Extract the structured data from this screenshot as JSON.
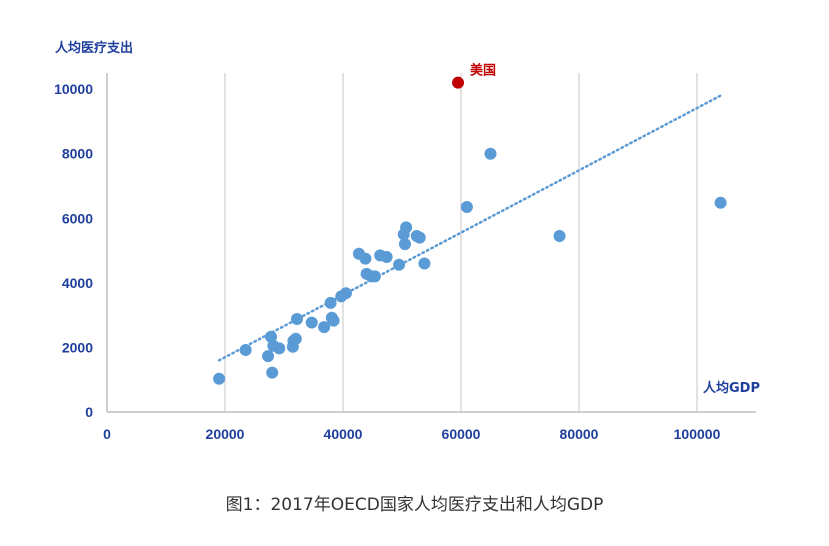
{
  "caption": "图1：2017年OECD国家人均医疗支出和人均GDP",
  "colors": {
    "point": "#5b9bd5",
    "highlight": "#c00000",
    "axis_text": "#1f3f9c",
    "grid": "#d9d9d9",
    "trend": "#5b9bd5"
  },
  "chart_data": {
    "type": "scatter",
    "title": "",
    "xlabel": "人均GDP",
    "ylabel": "人均医疗支出",
    "xlim": [
      0,
      110000
    ],
    "ylim": [
      0,
      10500
    ],
    "xticks": [
      "0",
      "20000",
      "40000",
      "60000",
      "80000",
      "100000"
    ],
    "yticks": [
      "0",
      "2000",
      "4000",
      "6000",
      "8000",
      "10000"
    ],
    "grid": "vertical",
    "trendline": {
      "style": "dotted",
      "x": [
        19000,
        104000
      ],
      "y": [
        1600,
        9800
      ]
    },
    "highlight": {
      "label": "美国",
      "x": 59500,
      "y": 10200
    },
    "points": [
      {
        "x": 19000,
        "y": 1030
      },
      {
        "x": 23500,
        "y": 1920
      },
      {
        "x": 27300,
        "y": 1730
      },
      {
        "x": 27800,
        "y": 2330
      },
      {
        "x": 28000,
        "y": 1220
      },
      {
        "x": 28200,
        "y": 2050
      },
      {
        "x": 29200,
        "y": 1970
      },
      {
        "x": 31500,
        "y": 2020
      },
      {
        "x": 31600,
        "y": 2200
      },
      {
        "x": 32000,
        "y": 2270
      },
      {
        "x": 32200,
        "y": 2880
      },
      {
        "x": 34700,
        "y": 2770
      },
      {
        "x": 36800,
        "y": 2630
      },
      {
        "x": 37900,
        "y": 3380
      },
      {
        "x": 38100,
        "y": 2920
      },
      {
        "x": 38400,
        "y": 2830
      },
      {
        "x": 39700,
        "y": 3580
      },
      {
        "x": 40500,
        "y": 3680
      },
      {
        "x": 42700,
        "y": 4900
      },
      {
        "x": 43800,
        "y": 4750
      },
      {
        "x": 44000,
        "y": 4280
      },
      {
        "x": 44800,
        "y": 4200
      },
      {
        "x": 45400,
        "y": 4200
      },
      {
        "x": 46300,
        "y": 4850
      },
      {
        "x": 47400,
        "y": 4800
      },
      {
        "x": 49500,
        "y": 4560
      },
      {
        "x": 50300,
        "y": 5500
      },
      {
        "x": 50500,
        "y": 5200
      },
      {
        "x": 50700,
        "y": 5720
      },
      {
        "x": 52500,
        "y": 5450
      },
      {
        "x": 53000,
        "y": 5400
      },
      {
        "x": 53800,
        "y": 4600
      },
      {
        "x": 61000,
        "y": 6350
      },
      {
        "x": 65000,
        "y": 8000
      },
      {
        "x": 76700,
        "y": 5450
      },
      {
        "x": 104000,
        "y": 6480
      }
    ]
  }
}
